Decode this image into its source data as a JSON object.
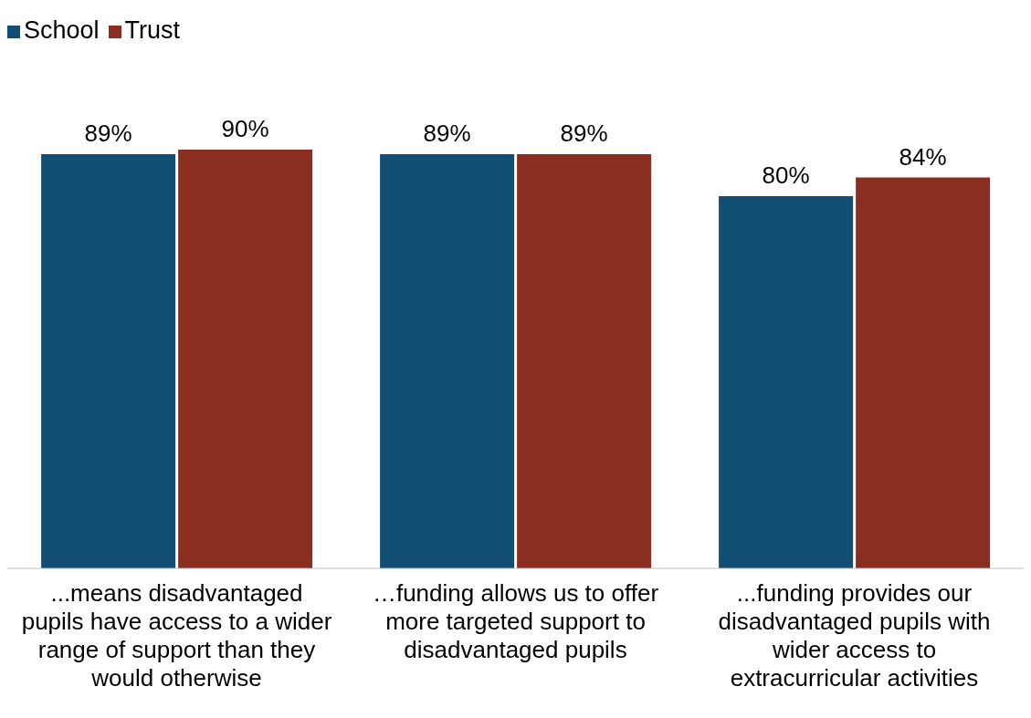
{
  "chart_data": {
    "type": "bar",
    "categories": [
      "...means disadvantaged pupils have access to a wider range of support than they would otherwise",
      "…funding allows us to offer more targeted support to disadvantaged pupils",
      "...funding provides our disadvantaged pupils with wider access to extracurricular activities"
    ],
    "series": [
      {
        "name": "School",
        "color": "#124e74",
        "values": [
          89,
          89,
          80
        ],
        "value_labels": [
          "89%",
          "89%",
          "80%"
        ]
      },
      {
        "name": "Trust",
        "color": "#8b2e22",
        "values": [
          90,
          89,
          84
        ],
        "value_labels": [
          "90%",
          "89%",
          "84%"
        ]
      }
    ],
    "legend": "top left",
    "grid": false
  }
}
